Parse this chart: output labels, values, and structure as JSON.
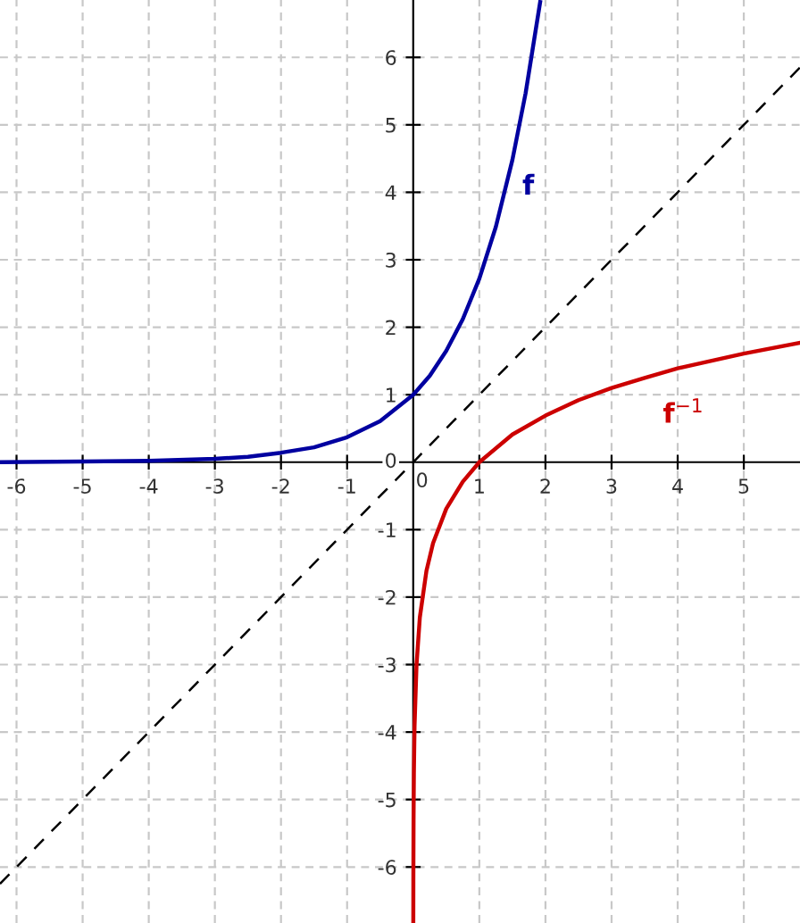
{
  "chart_data": {
    "type": "line",
    "xlim": [
      -6.25,
      5.85
    ],
    "ylim": [
      -6.83,
      6.85
    ],
    "xticks": [
      -6,
      -5,
      -4,
      -3,
      -2,
      -1,
      0,
      1,
      2,
      3,
      4,
      5
    ],
    "yticks": [
      -6,
      -5,
      -4,
      -3,
      -2,
      -1,
      0,
      1,
      2,
      3,
      4,
      5,
      6
    ],
    "grid": true,
    "marker": "none",
    "series": [
      {
        "name": "f",
        "color": "#0000a0",
        "line_style": "solid",
        "x": [
          -6.25,
          -5,
          -4,
          -3,
          -2.5,
          -2,
          -1.5,
          -1,
          -0.5,
          0,
          0.25,
          0.5,
          0.75,
          1,
          1.25,
          1.5,
          1.7,
          1.92
        ],
        "values": [
          0.0,
          0.01,
          0.02,
          0.05,
          0.08,
          0.14,
          0.22,
          0.37,
          0.61,
          1,
          1.28,
          1.65,
          2.12,
          2.72,
          3.49,
          4.48,
          5.47,
          6.82
        ]
      },
      {
        "name": "f$^{−1}$",
        "color": "#cc0000",
        "line_style": "solid",
        "x": [
          0.0011,
          0.002,
          0.005,
          0.01,
          0.02,
          0.05,
          0.1,
          0.2,
          0.3,
          0.5,
          0.75,
          1,
          1.5,
          2,
          2.5,
          3,
          3.5,
          4,
          4.5,
          5,
          5.85
        ],
        "values": [
          -6.81,
          -6.21,
          -5.3,
          -4.61,
          -3.91,
          -3.0,
          -2.3,
          -1.61,
          -1.2,
          -0.69,
          -0.29,
          0,
          0.41,
          0.69,
          0.92,
          1.1,
          1.25,
          1.39,
          1.5,
          1.61,
          1.77
        ]
      },
      {
        "color": "#000000",
        "line_style": "dashed",
        "x": [
          -6.25,
          -3,
          0,
          3,
          5.85
        ],
        "values": [
          -6.25,
          -3,
          0,
          3,
          5.85
        ]
      }
    ]
  }
}
